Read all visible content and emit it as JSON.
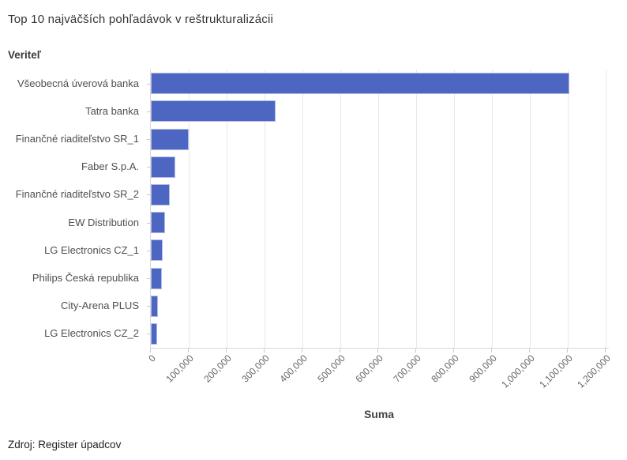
{
  "page": {
    "title": "Top 10 najväčších pohľadávok v reštrukturalizácii",
    "source": "Zdroj: Register úpadcov"
  },
  "chart_data": {
    "type": "bar",
    "orientation": "horizontal",
    "title": "Top 10 najväčších pohľadávok v reštrukturalizácii",
    "xlabel": "Suma",
    "ylabel": "Veriteľ",
    "categories": [
      "Všeobecná úverová banka",
      "Tatra banka",
      "Finančné riaditeľstvo SR_1",
      "Faber S.p.A.",
      "Finančné riaditeľstvo SR_2",
      "EW Distribution",
      "LG Electronics CZ_1",
      "Philips Česká republika",
      "City-Arena PLUS",
      "LG Electronics CZ_2"
    ],
    "values": [
      1104000,
      330000,
      99000,
      65000,
      51000,
      37000,
      31000,
      30000,
      19000,
      17000
    ],
    "xlim": [
      0,
      1208333
    ],
    "xticks": {
      "values": [
        0,
        100000,
        200000,
        300000,
        400000,
        500000,
        600000,
        700000,
        800000,
        900000,
        1000000,
        1100000,
        1200000
      ],
      "labels": [
        "0",
        "100,000",
        "200,000",
        "300,000",
        "400,000",
        "500,000",
        "600,000",
        "700,000",
        "800,000",
        "900,000",
        "1,000,000",
        "1,100,000",
        "1,200,000"
      ]
    },
    "grid": true,
    "legend": "none",
    "bar_color": "#4c66c2",
    "bar_border_color": "#b0bbe8",
    "source": "Zdroj: Register úpadcov"
  }
}
